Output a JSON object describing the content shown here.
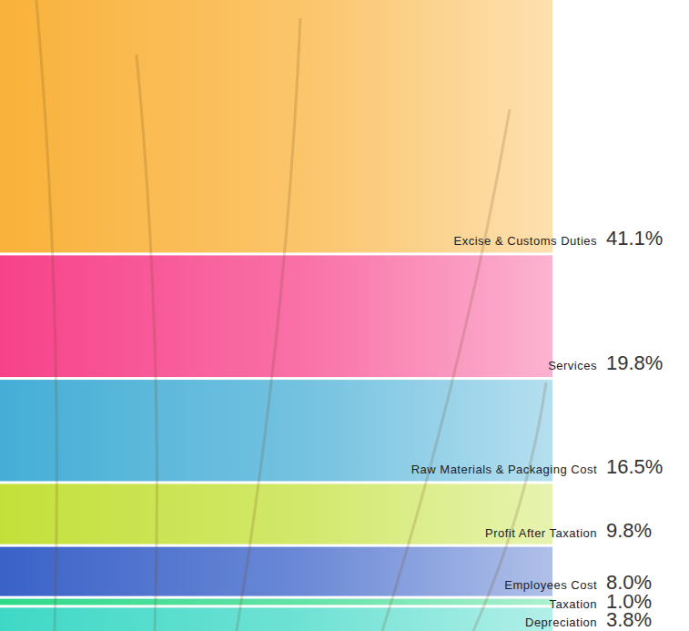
{
  "chart_data": {
    "type": "bar",
    "stacked": true,
    "tick_labels": false,
    "data_labels": true,
    "categories": [
      "Excise & Customs Duties",
      "Services",
      "Raw Materials & Packaging Cost",
      "Profit After Taxation",
      "Employees Cost",
      "Taxation",
      "Depreciation"
    ],
    "values": [
      41.1,
      19.8,
      16.5,
      9.8,
      8.0,
      1.0,
      3.8
    ],
    "value_labels": [
      "41.1%",
      "19.8%",
      "16.5%",
      "9.8%",
      "8.0%",
      "1.0%",
      "3.8%"
    ],
    "colors": [
      "#f9b23a",
      "#f7428a",
      "#45aed6",
      "#c3e03a",
      "#3a62c8",
      "#2fd98a",
      "#3fd8c6"
    ],
    "ylim": [
      0,
      100
    ]
  }
}
